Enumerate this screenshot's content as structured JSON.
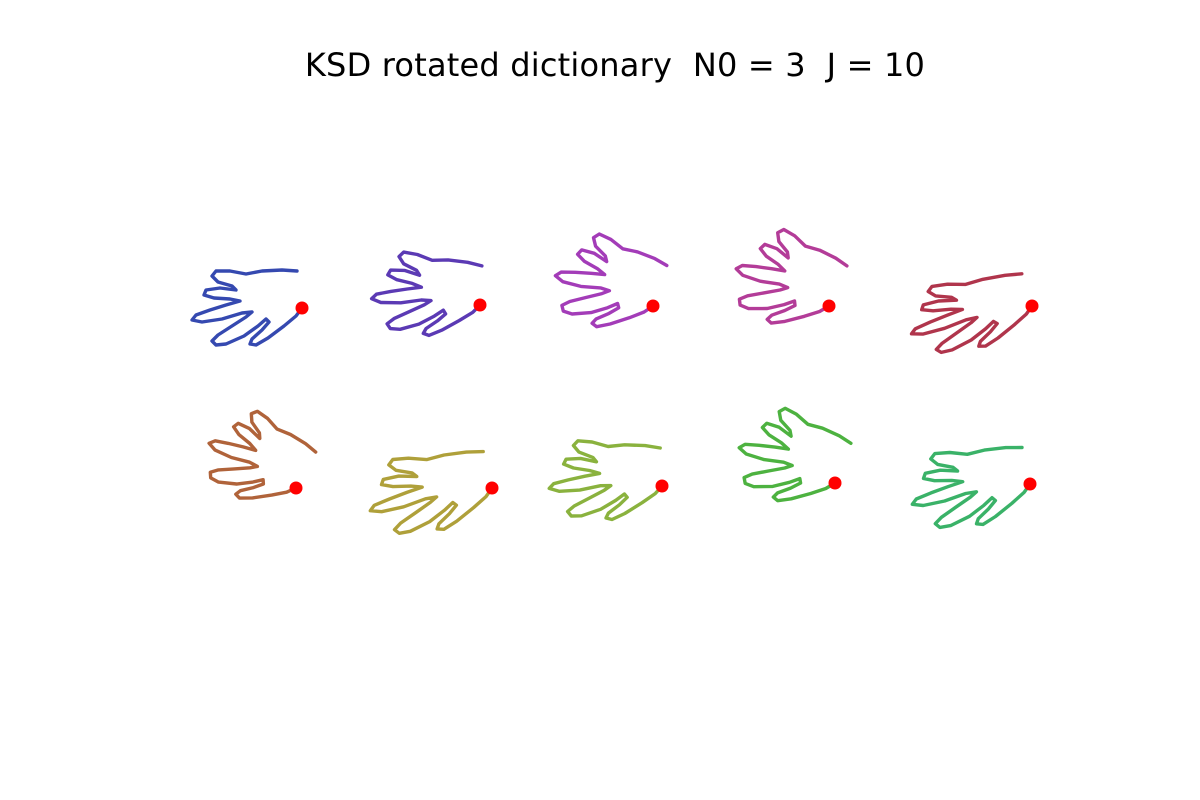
{
  "title": "KSD rotated dictionary  N0 = 3  J = 10",
  "start_marker_color": "#ff0000",
  "shapes": [
    {
      "color": "#3549b0"
    },
    {
      "color": "#5b3ab4"
    },
    {
      "color": "#a33cb8"
    },
    {
      "color": "#b33c98"
    },
    {
      "color": "#b0354c"
    },
    {
      "color": "#b0633a"
    },
    {
      "color": "#afa03a"
    },
    {
      "color": "#8ab23e"
    },
    {
      "color": "#4db240"
    },
    {
      "color": "#3ab268"
    }
  ]
}
